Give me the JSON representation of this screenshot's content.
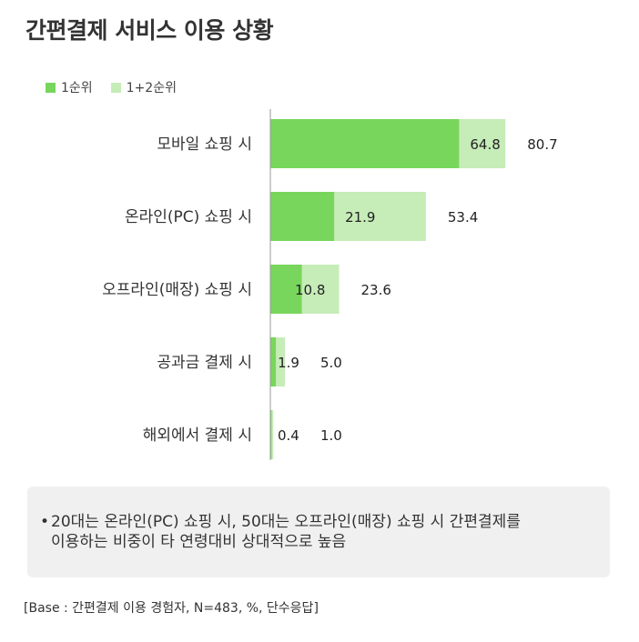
{
  "title": "간편결제 서비스 이용 상황",
  "colors": {
    "first": "#78d65c",
    "firstSecond": "#c6ecb8",
    "axis": "#999999"
  },
  "chart_data": {
    "type": "bar",
    "orientation": "horizontal",
    "categories": [
      "모바일 쇼핑 시",
      "온라인(PC) 쇼핑 시",
      "오프라인(매장) 쇼핑 시",
      "공과금 결제 시",
      "해외에서 결제 시"
    ],
    "series": [
      {
        "name": "1순위",
        "values": [
          64.8,
          21.9,
          10.8,
          1.9,
          0.4
        ]
      },
      {
        "name": "1+2순위",
        "values": [
          80.7,
          53.4,
          23.6,
          5.0,
          1.0
        ]
      }
    ],
    "value_labels": [
      [
        "64.8",
        "21.9",
        "10.8",
        "1.9",
        "0.4"
      ],
      [
        "80.7",
        "53.4",
        "23.6",
        "5.0",
        "1.0"
      ]
    ],
    "legend_position": "top-left",
    "grid": false,
    "xlim": [
      0,
      100
    ]
  },
  "note": {
    "bullet": "•",
    "text": "20대는 온라인(PC) 쇼핑 시, 50대는 오프라인(매장) 쇼핑 시 간편결제를\n이용하는 비중이 타 연령대비 상대적으로 높음"
  },
  "base": "[Base :  간편결제 이용 경험자, N=483, %, 단수응답]"
}
